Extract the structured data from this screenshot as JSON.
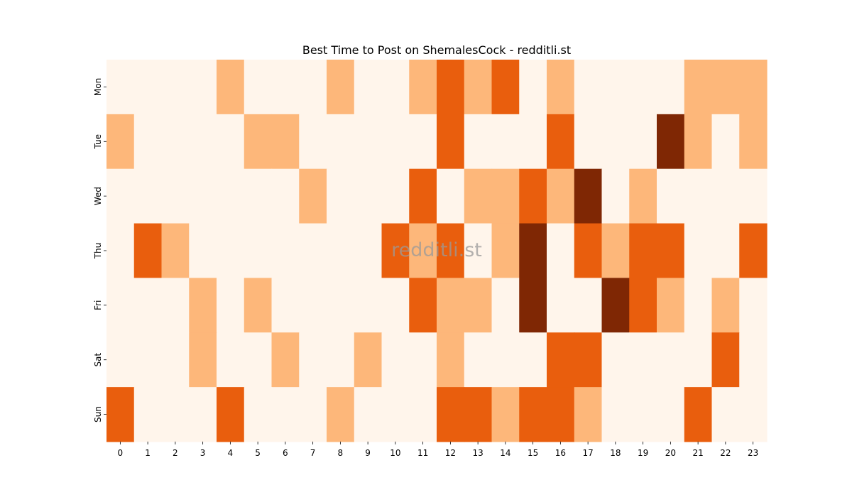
{
  "chart_data": {
    "type": "heatmap",
    "title": "Best Time to Post on ShemalesCock - redditli.st",
    "xlabel": "",
    "ylabel": "",
    "x_categories": [
      "0",
      "1",
      "2",
      "3",
      "4",
      "5",
      "6",
      "7",
      "8",
      "9",
      "10",
      "11",
      "12",
      "13",
      "14",
      "15",
      "16",
      "17",
      "18",
      "19",
      "20",
      "21",
      "22",
      "23"
    ],
    "y_categories": [
      "Mon",
      "Tue",
      "Wed",
      "Thu",
      "Fri",
      "Sat",
      "Sun"
    ],
    "colorscale": [
      "#fff5eb",
      "#fdb77a",
      "#e95e0d",
      "#7f2704"
    ],
    "colorbar": false,
    "values": [
      [
        0,
        0,
        0,
        0,
        1,
        0,
        0,
        0,
        1,
        0,
        0,
        1,
        2,
        1,
        2,
        0,
        1,
        0,
        0,
        0,
        0,
        1,
        1,
        1
      ],
      [
        1,
        0,
        0,
        0,
        0,
        1,
        1,
        0,
        0,
        0,
        0,
        0,
        2,
        0,
        0,
        0,
        2,
        0,
        0,
        0,
        3,
        1,
        0,
        1
      ],
      [
        0,
        0,
        0,
        0,
        0,
        0,
        0,
        1,
        0,
        0,
        0,
        2,
        0,
        1,
        1,
        2,
        1,
        3,
        0,
        1,
        0,
        0,
        0,
        0
      ],
      [
        0,
        2,
        1,
        0,
        0,
        0,
        0,
        0,
        0,
        0,
        2,
        1,
        2,
        0,
        1,
        3,
        0,
        2,
        1,
        2,
        2,
        0,
        0,
        2
      ],
      [
        0,
        0,
        0,
        1,
        0,
        1,
        0,
        0,
        0,
        0,
        0,
        2,
        1,
        1,
        0,
        3,
        0,
        0,
        3,
        2,
        1,
        0,
        1,
        0
      ],
      [
        0,
        0,
        0,
        1,
        0,
        0,
        1,
        0,
        0,
        1,
        0,
        0,
        1,
        0,
        0,
        0,
        2,
        2,
        0,
        0,
        0,
        0,
        2,
        0
      ],
      [
        2,
        0,
        0,
        0,
        2,
        0,
        0,
        0,
        1,
        0,
        0,
        0,
        2,
        2,
        1,
        2,
        2,
        1,
        0,
        0,
        0,
        2,
        0,
        0
      ]
    ]
  },
  "watermark": "redditli.st"
}
